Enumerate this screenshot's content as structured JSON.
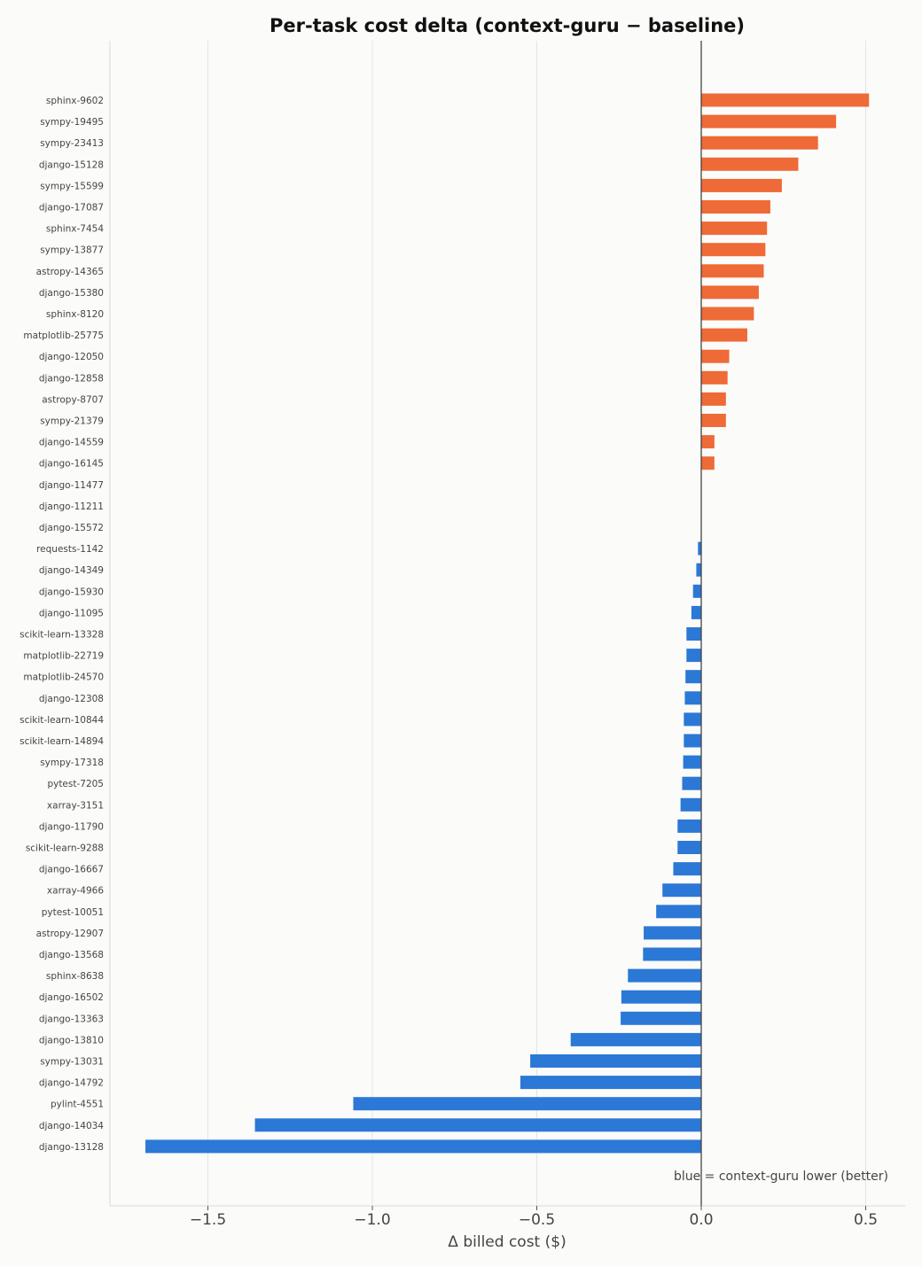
{
  "chart_data": {
    "type": "bar",
    "orientation": "horizontal",
    "title": "Per-task cost delta (context-guru − baseline)",
    "xlabel": "Δ billed cost ($)",
    "ylabel": "",
    "xlim": [
      -1.8,
      0.62
    ],
    "xticks": [
      -1.5,
      -1.0,
      -0.5,
      0.0,
      0.5
    ],
    "xtick_labels": [
      "−1.5",
      "−1.0",
      "−0.5",
      "0.0",
      "0.5"
    ],
    "grid": "vertical",
    "annotation": "blue = context-guru lower (better)",
    "colors": {
      "positive": "#ee6a37",
      "negative": "#2b78d6",
      "zero_line": "#444444",
      "grid": "#e4e4e4"
    },
    "categories": [
      "sphinx-9602",
      "sympy-19495",
      "sympy-23413",
      "django-15128",
      "sympy-15599",
      "django-17087",
      "sphinx-7454",
      "sympy-13877",
      "astropy-14365",
      "django-15380",
      "sphinx-8120",
      "matplotlib-25775",
      "django-12050",
      "django-12858",
      "astropy-8707",
      "sympy-21379",
      "django-14559",
      "django-16145",
      "django-11477",
      "django-11211",
      "django-15572",
      "requests-1142",
      "django-14349",
      "django-15930",
      "django-11095",
      "scikit-learn-13328",
      "matplotlib-22719",
      "matplotlib-24570",
      "django-12308",
      "scikit-learn-10844",
      "scikit-learn-14894",
      "sympy-17318",
      "pytest-7205",
      "xarray-3151",
      "django-11790",
      "scikit-learn-9288",
      "django-16667",
      "xarray-4966",
      "pytest-10051",
      "astropy-12907",
      "django-13568",
      "sphinx-8638",
      "django-16502",
      "django-13363",
      "django-13810",
      "sympy-13031",
      "django-14792",
      "pylint-4551",
      "django-14034",
      "django-13128"
    ],
    "values": [
      0.51,
      0.41,
      0.355,
      0.295,
      0.245,
      0.21,
      0.2,
      0.195,
      0.19,
      0.175,
      0.16,
      0.14,
      0.085,
      0.08,
      0.075,
      0.075,
      0.04,
      0.04,
      0.0,
      0.0,
      0.0,
      -0.01,
      -0.015,
      -0.025,
      -0.03,
      -0.045,
      -0.045,
      -0.048,
      -0.05,
      -0.053,
      -0.053,
      -0.055,
      -0.058,
      -0.063,
      -0.072,
      -0.072,
      -0.085,
      -0.118,
      -0.137,
      -0.175,
      -0.177,
      -0.223,
      -0.243,
      -0.245,
      -0.397,
      -0.52,
      -0.55,
      -1.058,
      -1.357,
      -1.69
    ]
  }
}
